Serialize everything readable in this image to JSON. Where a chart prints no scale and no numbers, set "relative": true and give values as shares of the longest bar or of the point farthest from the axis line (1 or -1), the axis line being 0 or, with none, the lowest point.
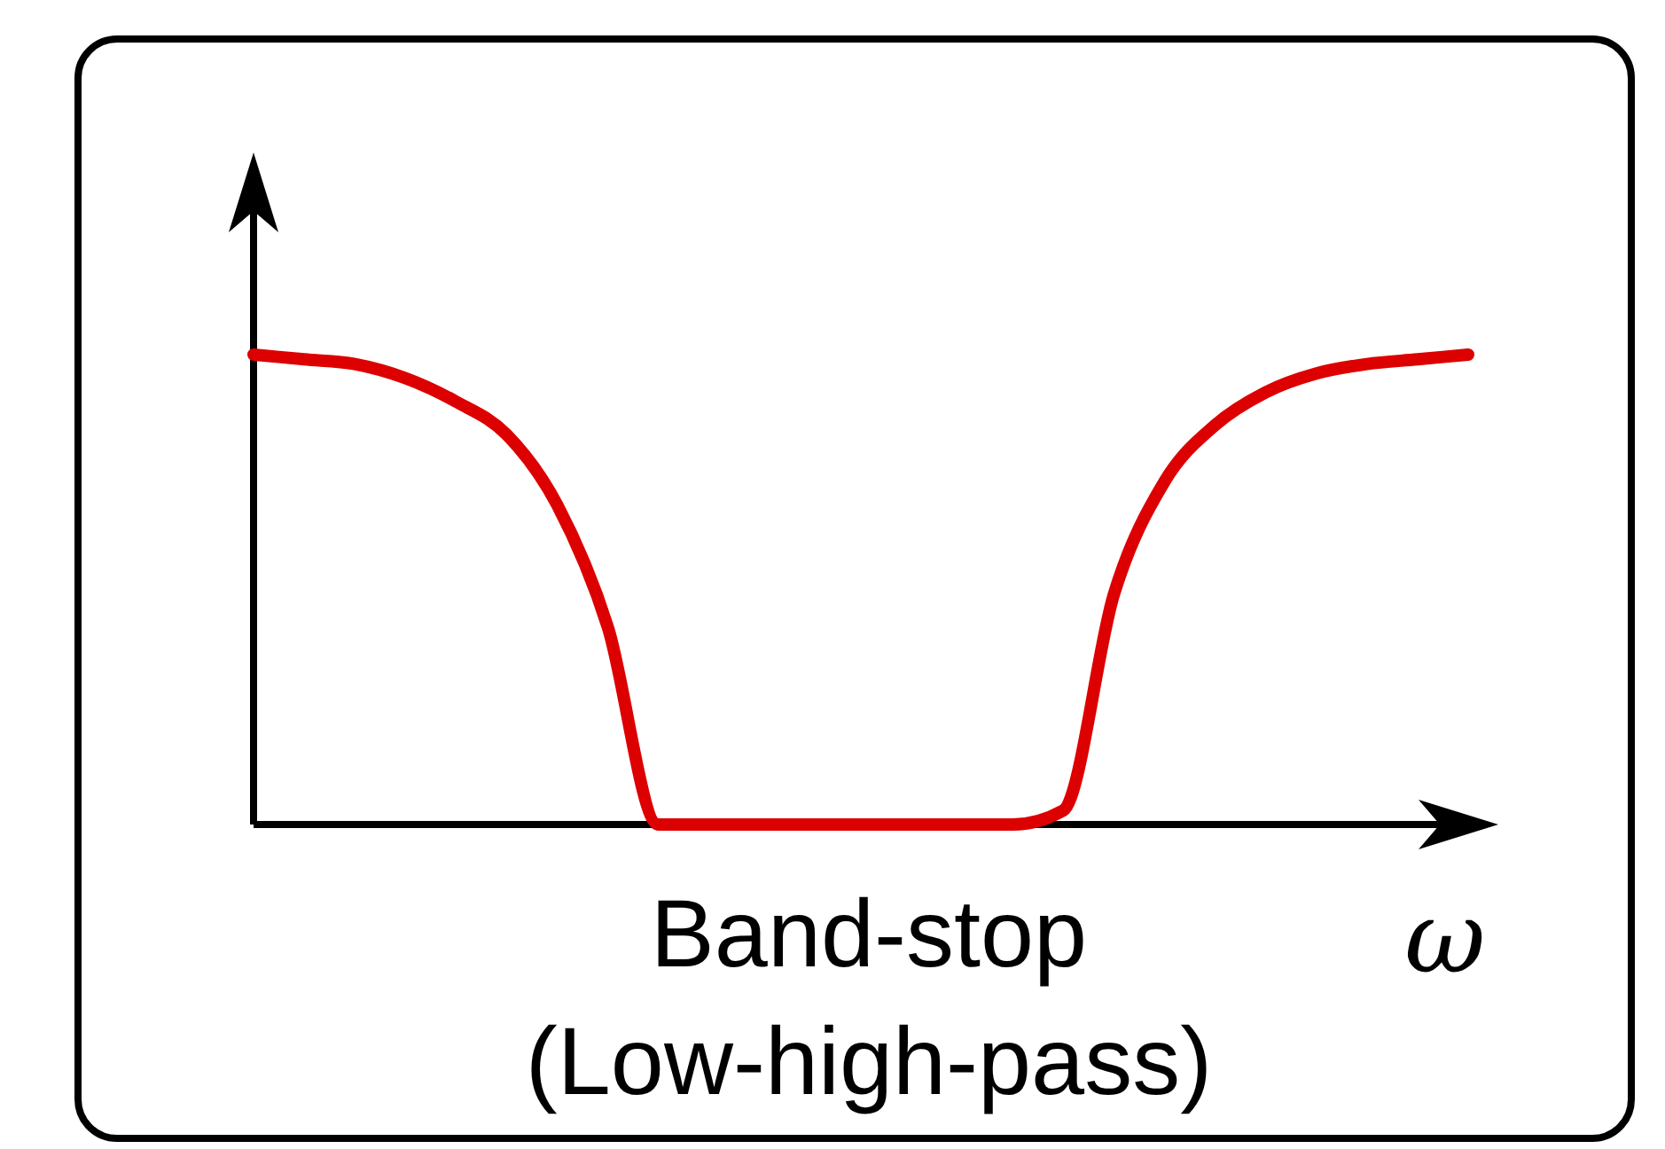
{
  "chart_data": {
    "type": "line",
    "title": "Band-stop (Low-high-pass)",
    "xlabel": "ω",
    "relative": true,
    "categories": [
      null,
      null,
      null,
      null,
      null,
      null,
      null,
      null,
      null,
      null,
      null,
      null,
      null,
      null,
      null,
      null,
      null,
      null,
      null,
      null,
      null,
      null,
      null,
      null,
      null
    ],
    "series": [
      {
        "color": "#dd0000",
        "values": [
          1,
          0.99,
          0.98,
          0.95,
          0.9,
          0.83,
          0.68,
          0.42,
          0,
          0,
          0,
          0,
          0,
          0,
          0,
          0,
          0.03,
          0.49,
          0.73,
          0.85,
          0.92,
          0.96,
          0.98,
          0.99,
          1
        ]
      }
    ]
  }
}
